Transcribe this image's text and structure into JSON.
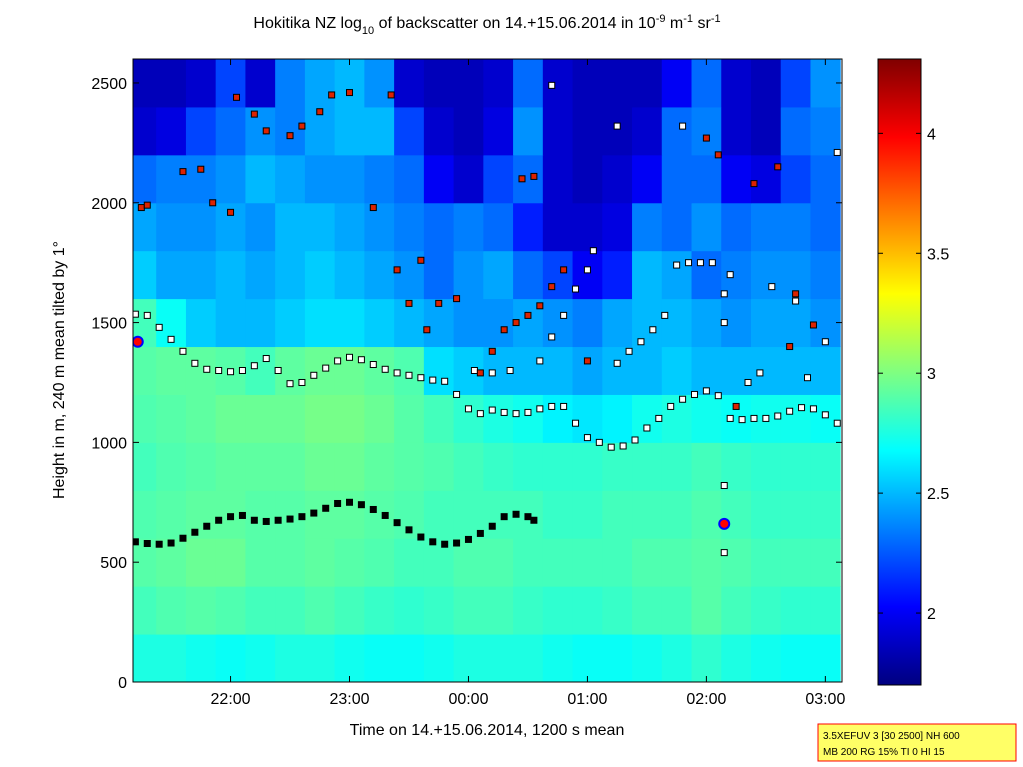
{
  "chart_data": {
    "type": "heatmap",
    "title": [
      {
        "text": "Hokitika NZ log"
      },
      {
        "text": "10",
        "shift": "sub"
      },
      {
        "text": " of backscatter on 14.+15.06.2014 in 10"
      },
      {
        "text": "-9",
        "shift": "super"
      },
      {
        "text": " m"
      },
      {
        "text": "-1",
        "shift": "super"
      },
      {
        "text": " sr"
      },
      {
        "text": "-1",
        "shift": "super"
      }
    ],
    "xlabel": "Time on 14.+15.06.2014, 1200 s mean",
    "ylabel": "Height in m, 240 m mean tilted by 1°",
    "annotation": [
      "3.5XEFUV 3 [30 2500] NH 600",
      "MB 200 RG 15% TI 0 HI 15"
    ],
    "colormap": "jet",
    "xlim": [
      21.18,
      27.14
    ],
    "xticks": [
      {
        "value": 22,
        "label": "22:00"
      },
      {
        "value": 23,
        "label": "23:00"
      },
      {
        "value": 24,
        "label": "00:00"
      },
      {
        "value": 25,
        "label": "01:00"
      },
      {
        "value": 26,
        "label": "02:00"
      },
      {
        "value": 27,
        "label": "03:00"
      }
    ],
    "ylim": [
      0,
      2600
    ],
    "yticks": [
      0,
      500,
      1000,
      1500,
      2000,
      2500
    ],
    "clim": [
      1.7,
      4.31
    ],
    "cticks": [
      2,
      2.5,
      3,
      3.5,
      4
    ],
    "x": [
      21.25,
      21.5,
      21.75,
      22.0,
      22.25,
      22.5,
      22.75,
      23.0,
      23.25,
      23.5,
      23.75,
      24.0,
      24.25,
      24.5,
      24.75,
      25.0,
      25.25,
      25.5,
      25.75,
      26.0,
      26.25,
      26.5,
      26.75,
      27.0
    ],
    "y": [
      100,
      300,
      500,
      700,
      900,
      1100,
      1300,
      1500,
      1700,
      1900,
      2100,
      2300,
      2500
    ],
    "z": [
      [
        2.75,
        2.75,
        2.72,
        2.7,
        2.72,
        2.75,
        2.75,
        2.72,
        2.7,
        2.7,
        2.72,
        2.75,
        2.75,
        2.75,
        2.72,
        2.7,
        2.7,
        2.72,
        2.75,
        2.8,
        2.75,
        2.72,
        2.7,
        2.7
      ],
      [
        2.85,
        2.88,
        2.9,
        2.88,
        2.85,
        2.85,
        2.88,
        2.85,
        2.82,
        2.8,
        2.82,
        2.85,
        2.85,
        2.82,
        2.8,
        2.8,
        2.82,
        2.85,
        2.85,
        2.9,
        2.85,
        2.82,
        2.8,
        2.8
      ],
      [
        2.9,
        2.92,
        2.95,
        2.95,
        2.9,
        2.9,
        2.92,
        2.9,
        2.88,
        2.85,
        2.85,
        2.88,
        2.88,
        2.85,
        2.85,
        2.85,
        2.85,
        2.88,
        2.88,
        2.9,
        2.88,
        2.85,
        2.85,
        2.85
      ],
      [
        2.88,
        2.9,
        2.92,
        2.92,
        2.9,
        2.9,
        2.92,
        2.92,
        2.9,
        2.88,
        2.85,
        2.85,
        2.85,
        2.85,
        2.82,
        2.82,
        2.85,
        2.85,
        2.85,
        2.88,
        2.85,
        2.82,
        2.82,
        2.82
      ],
      [
        2.85,
        2.88,
        2.9,
        2.92,
        2.92,
        2.92,
        2.95,
        2.95,
        2.92,
        2.9,
        2.88,
        2.85,
        2.82,
        2.8,
        2.8,
        2.8,
        2.82,
        2.82,
        2.82,
        2.85,
        2.82,
        2.8,
        2.8,
        2.8
      ],
      [
        2.88,
        2.9,
        2.92,
        2.95,
        2.95,
        2.95,
        2.98,
        2.98,
        2.95,
        2.9,
        2.85,
        2.8,
        2.75,
        2.72,
        2.65,
        2.62,
        2.65,
        2.72,
        2.75,
        2.72,
        2.7,
        2.72,
        2.72,
        2.7
      ],
      [
        2.9,
        2.92,
        2.92,
        2.9,
        2.85,
        2.92,
        2.95,
        2.95,
        2.92,
        2.88,
        2.6,
        2.55,
        2.5,
        2.5,
        2.5,
        2.45,
        2.5,
        2.5,
        2.55,
        2.5,
        2.5,
        2.5,
        2.5,
        2.5
      ],
      [
        2.85,
        2.7,
        2.55,
        2.5,
        2.5,
        2.55,
        2.6,
        2.6,
        2.55,
        2.5,
        2.45,
        2.4,
        2.4,
        2.45,
        2.4,
        2.35,
        2.45,
        2.5,
        2.5,
        2.45,
        2.4,
        2.45,
        2.45,
        2.4
      ],
      [
        2.55,
        2.45,
        2.45,
        2.5,
        2.45,
        2.5,
        2.55,
        2.5,
        2.45,
        2.4,
        2.3,
        2.4,
        2.45,
        2.3,
        2.2,
        2.0,
        2.1,
        2.5,
        2.45,
        2.3,
        2.35,
        2.4,
        2.4,
        2.35
      ],
      [
        2.45,
        2.4,
        2.4,
        2.45,
        2.4,
        2.5,
        2.5,
        2.45,
        2.4,
        2.35,
        2.3,
        2.35,
        2.3,
        2.1,
        1.9,
        1.9,
        1.95,
        2.35,
        2.3,
        2.4,
        2.3,
        2.35,
        2.35,
        2.3
      ],
      [
        2.3,
        2.35,
        2.35,
        2.4,
        2.5,
        2.45,
        2.4,
        2.4,
        2.35,
        2.3,
        2.0,
        1.9,
        2.2,
        2.3,
        1.9,
        1.85,
        1.9,
        2.0,
        2.3,
        2.3,
        2.0,
        1.95,
        2.2,
        2.3
      ],
      [
        1.9,
        1.95,
        2.2,
        2.3,
        2.4,
        2.35,
        2.45,
        2.5,
        2.5,
        2.2,
        1.9,
        1.85,
        1.95,
        2.4,
        1.9,
        1.85,
        1.85,
        1.9,
        2.3,
        2.35,
        1.9,
        1.85,
        2.3,
        2.35
      ],
      [
        1.85,
        1.85,
        1.9,
        2.2,
        1.9,
        2.35,
        2.45,
        2.5,
        2.4,
        1.9,
        1.85,
        1.85,
        1.9,
        2.3,
        1.9,
        1.85,
        1.85,
        1.85,
        2.0,
        2.3,
        1.9,
        1.85,
        2.2,
        2.4
      ]
    ],
    "series": [
      {
        "marker": "square",
        "color": "#000000",
        "edgecolor": "#000000",
        "x": [
          21.2,
          21.3,
          21.4,
          21.5,
          21.6,
          21.7,
          21.8,
          21.9,
          22.0,
          22.1,
          22.2,
          22.3,
          22.4,
          22.5,
          22.6,
          22.7,
          22.8,
          22.9,
          23.0,
          23.1,
          23.2,
          23.3,
          23.4,
          23.5,
          23.6,
          23.7,
          23.8,
          23.9,
          24.0,
          24.1,
          24.2,
          24.3,
          24.4,
          24.5,
          24.55
        ],
        "values": [
          585,
          578,
          575,
          580,
          600,
          625,
          650,
          675,
          690,
          695,
          675,
          670,
          675,
          680,
          690,
          705,
          725,
          745,
          750,
          740,
          720,
          695,
          665,
          635,
          605,
          585,
          575,
          580,
          595,
          620,
          650,
          690,
          700,
          690,
          675
        ]
      },
      {
        "marker": "square",
        "color": "#ffffff",
        "edgecolor": "#000000",
        "x": [
          21.2,
          21.3,
          21.4,
          21.5,
          21.6,
          21.7,
          21.8,
          21.9,
          22.0,
          22.1,
          22.2,
          22.3,
          22.4,
          22.5,
          22.6,
          22.7,
          22.8,
          22.9,
          23.0,
          23.1,
          23.2,
          23.3,
          23.4,
          23.5,
          23.6,
          23.7,
          23.8,
          23.9,
          24.0,
          24.1,
          24.2,
          24.3,
          24.4,
          24.5,
          24.6,
          24.7,
          24.8,
          24.9,
          25.0,
          25.1,
          25.2,
          25.3,
          25.4,
          25.5,
          25.6,
          25.7,
          25.8,
          25.9,
          26.0,
          26.1,
          26.2,
          26.3,
          26.4,
          26.5,
          26.6,
          26.7,
          26.8,
          26.9,
          27.0,
          27.1
        ],
        "values": [
          1535,
          1530,
          1480,
          1430,
          1380,
          1330,
          1305,
          1300,
          1295,
          1300,
          1320,
          1350,
          1300,
          1245,
          1250,
          1280,
          1310,
          1340,
          1355,
          1345,
          1325,
          1305,
          1290,
          1280,
          1270,
          1260,
          1255,
          1200,
          1140,
          1120,
          1135,
          1125,
          1120,
          1125,
          1140,
          1150,
          1150,
          1080,
          1020,
          1000,
          980,
          985,
          1010,
          1060,
          1100,
          1150,
          1180,
          1200,
          1215,
          1195,
          1100,
          1095,
          1100,
          1100,
          1110,
          1130,
          1145,
          1140,
          1115,
          1080
        ]
      },
      {
        "marker": "square",
        "color": "#ffffff",
        "edgecolor": "#000000",
        "x": [
          24.05,
          24.2,
          24.35,
          24.6,
          24.7,
          24.8,
          24.9,
          25.0,
          25.05,
          25.25,
          25.35,
          25.45,
          25.55,
          25.65,
          25.75,
          25.85,
          25.95,
          26.05,
          26.15,
          26.15,
          26.15,
          26.15,
          26.2,
          26.35,
          26.45,
          26.55,
          26.75,
          26.85,
          27.0,
          27.1,
          25.25,
          24.7,
          25.8
        ],
        "values": [
          1300,
          1290,
          1300,
          1340,
          1440,
          1530,
          1640,
          1720,
          1800,
          1330,
          1380,
          1420,
          1470,
          1530,
          1740,
          1750,
          1750,
          1750,
          1620,
          1500,
          820,
          540,
          1700,
          1250,
          1290,
          1650,
          1590,
          1270,
          1420,
          2210,
          2320,
          2490,
          2320
        ]
      },
      {
        "marker": "square",
        "color": "#dd2200",
        "edgecolor": "#000000",
        "x": [
          21.25,
          21.3,
          21.6,
          21.75,
          21.85,
          22.0,
          22.05,
          22.2,
          22.3,
          22.5,
          22.6,
          22.75,
          22.85,
          23.0,
          23.2,
          23.35,
          23.4,
          23.5,
          23.6,
          23.65,
          23.75,
          23.9,
          24.1,
          24.2,
          24.3,
          24.4,
          24.5,
          24.6,
          24.7,
          24.8,
          25.0,
          26.0,
          26.1,
          26.25,
          26.4,
          26.6,
          26.75,
          26.7,
          26.9,
          24.45,
          24.55
        ],
        "values": [
          1980,
          1990,
          2130,
          2140,
          2000,
          1960,
          2440,
          2370,
          2300,
          2280,
          2320,
          2380,
          2450,
          2460,
          1980,
          2450,
          1720,
          1580,
          1760,
          1470,
          1580,
          1600,
          1290,
          1380,
          1470,
          1500,
          1530,
          1570,
          1650,
          1720,
          1340,
          2270,
          2200,
          1150,
          2080,
          2150,
          1620,
          1400,
          1490,
          2100,
          2110
        ]
      },
      {
        "marker": "circle",
        "color": "#ff0000",
        "edgecolor": "#0000ff",
        "x": [
          21.22,
          26.15
        ],
        "values": [
          1420,
          660
        ]
      }
    ]
  }
}
